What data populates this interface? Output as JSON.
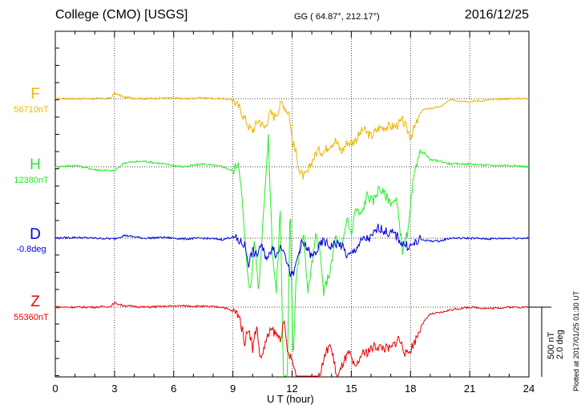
{
  "header": {
    "station": "College (CMO)  [USGS]",
    "coords": "GG ( 64.87°, 212.17°)",
    "date": "2016/12/25"
  },
  "side": {
    "plotted": "Plotted at 2017/01/25 01:30 UT",
    "scale_nt": "500 nT",
    "scale_deg": "2.0 deg"
  },
  "chart_data": {
    "type": "line",
    "title": "College (CMO)  [USGS]",
    "xlabel": "U T (hour)",
    "ylabel": "",
    "xlim": [
      0,
      24
    ],
    "x_ticks": [
      "0",
      "3",
      "6",
      "9",
      "12",
      "15",
      "18",
      "21",
      "24"
    ],
    "grid": true,
    "scale_bar": {
      "nT": 500,
      "deg": 2.0
    },
    "series": [
      {
        "name": "F",
        "baseline": "56710nT",
        "color": "#f0b400",
        "x": [
          0,
          1,
          2,
          2.8,
          3,
          3.5,
          4.5,
          5.5,
          6.5,
          7.5,
          8.5,
          9,
          9.3,
          9.6,
          9.8,
          10,
          10.3,
          10.6,
          10.9,
          11.1,
          11.3,
          11.5,
          11.7,
          11.85,
          12,
          12.2,
          12.4,
          12.6,
          12.8,
          13,
          13.3,
          13.6,
          13.9,
          14.2,
          14.5,
          14.8,
          15,
          15.3,
          15.6,
          16,
          16.4,
          16.8,
          17.2,
          17.6,
          18,
          18.3,
          18.6,
          19,
          19.5,
          20,
          21,
          22,
          23,
          24
        ],
        "y": [
          0,
          0,
          0,
          3,
          40,
          10,
          0,
          5,
          0,
          5,
          0,
          -10,
          -60,
          -140,
          -200,
          -230,
          -150,
          -210,
          -100,
          -130,
          -80,
          -20,
          -80,
          -100,
          -300,
          -390,
          -530,
          -560,
          -530,
          -450,
          -370,
          -380,
          -330,
          -300,
          -380,
          -310,
          -320,
          -280,
          -220,
          -270,
          -210,
          -200,
          -200,
          -160,
          -270,
          -180,
          -80,
          -70,
          -60,
          -10,
          -20,
          -10,
          0,
          0
        ]
      },
      {
        "name": "H",
        "baseline": "12380nT",
        "color": "#22ee22",
        "x": [
          0,
          1,
          2,
          3,
          3.5,
          4.5,
          5.5,
          6.5,
          7.5,
          8.5,
          9,
          9.3,
          9.5,
          9.7,
          9.9,
          10.1,
          10.3,
          10.6,
          10.8,
          11,
          11.2,
          11.4,
          11.6,
          11.75,
          11.9,
          12.05,
          12.2,
          12.4,
          12.6,
          12.8,
          13,
          13.2,
          13.4,
          13.6,
          13.8,
          14,
          14.2,
          14.5,
          14.8,
          15,
          15.2,
          15.5,
          15.8,
          16.1,
          16.4,
          16.7,
          17,
          17.3,
          17.6,
          17.9,
          18.1,
          18.4,
          18.7,
          19,
          19.5,
          20,
          21,
          22,
          23,
          24
        ],
        "y": [
          0,
          10,
          -20,
          -30,
          30,
          40,
          20,
          0,
          20,
          0,
          -30,
          40,
          -300,
          -700,
          -900,
          -500,
          -900,
          -200,
          200,
          -600,
          -900,
          -300,
          -1800,
          -1600,
          -200,
          -1400,
          -800,
          -600,
          -500,
          -900,
          -700,
          -500,
          -600,
          -900,
          -800,
          -700,
          -500,
          -600,
          -350,
          -500,
          -300,
          -350,
          -200,
          -250,
          -150,
          -200,
          -250,
          -250,
          -600,
          -450,
          -150,
          100,
          100,
          50,
          40,
          20,
          20,
          10,
          10,
          0
        ]
      },
      {
        "name": "D",
        "baseline": "-0.8deg",
        "color": "#0000dd",
        "x": [
          0,
          1,
          2,
          3,
          3.5,
          4.5,
          5.5,
          6.5,
          7.5,
          8.5,
          9,
          9.3,
          9.6,
          9.8,
          10,
          10.2,
          10.4,
          10.6,
          10.8,
          11,
          11.2,
          11.4,
          11.6,
          11.8,
          12,
          12.1,
          12.3,
          12.5,
          12.8,
          13,
          13.3,
          13.6,
          13.9,
          14.2,
          14.5,
          14.8,
          15,
          15.3,
          15.6,
          16,
          16.4,
          16.8,
          17.2,
          17.6,
          18,
          18.5,
          19,
          19.5,
          20,
          21,
          22,
          23,
          24
        ],
        "y": [
          0,
          5,
          0,
          -5,
          20,
          0,
          5,
          -5,
          0,
          -10,
          10,
          -20,
          -50,
          -180,
          -90,
          -130,
          -50,
          -110,
          -150,
          -40,
          -130,
          -60,
          -70,
          -210,
          -280,
          -250,
          -120,
          -30,
          -80,
          -140,
          -80,
          -20,
          -60,
          -40,
          -50,
          -130,
          -120,
          -60,
          -10,
          0,
          80,
          40,
          30,
          -40,
          -60,
          -10,
          -20,
          -20,
          0,
          0,
          -5,
          0,
          0
        ]
      },
      {
        "name": "Z",
        "baseline": "55360nT",
        "color": "#ee0000",
        "x": [
          0,
          1,
          2,
          2.8,
          3,
          3.5,
          4.5,
          5.5,
          6.5,
          7.5,
          8.5,
          9,
          9.3,
          9.6,
          9.8,
          10,
          10.2,
          10.4,
          10.6,
          10.8,
          11,
          11.2,
          11.4,
          11.6,
          11.8,
          12,
          12.2,
          12.5,
          12.8,
          13,
          13.3,
          13.6,
          13.9,
          14.1,
          14.3,
          14.6,
          14.9,
          15.2,
          15.5,
          15.8,
          16.2,
          16.6,
          17,
          17.4,
          17.8,
          18.2,
          18.6,
          19,
          19.5,
          20,
          21,
          22,
          23,
          24
        ],
        "y": [
          0,
          0,
          0,
          5,
          30,
          10,
          0,
          5,
          10,
          5,
          0,
          -30,
          -50,
          -250,
          -140,
          -300,
          -130,
          -380,
          -280,
          -200,
          -160,
          -200,
          -220,
          -120,
          -340,
          -380,
          -490,
          -790,
          -690,
          -630,
          -540,
          -380,
          -260,
          -370,
          -520,
          -390,
          -330,
          -450,
          -340,
          -320,
          -280,
          -290,
          -300,
          -220,
          -350,
          -250,
          -120,
          -50,
          -40,
          -20,
          0,
          -10,
          0,
          0
        ]
      }
    ]
  }
}
